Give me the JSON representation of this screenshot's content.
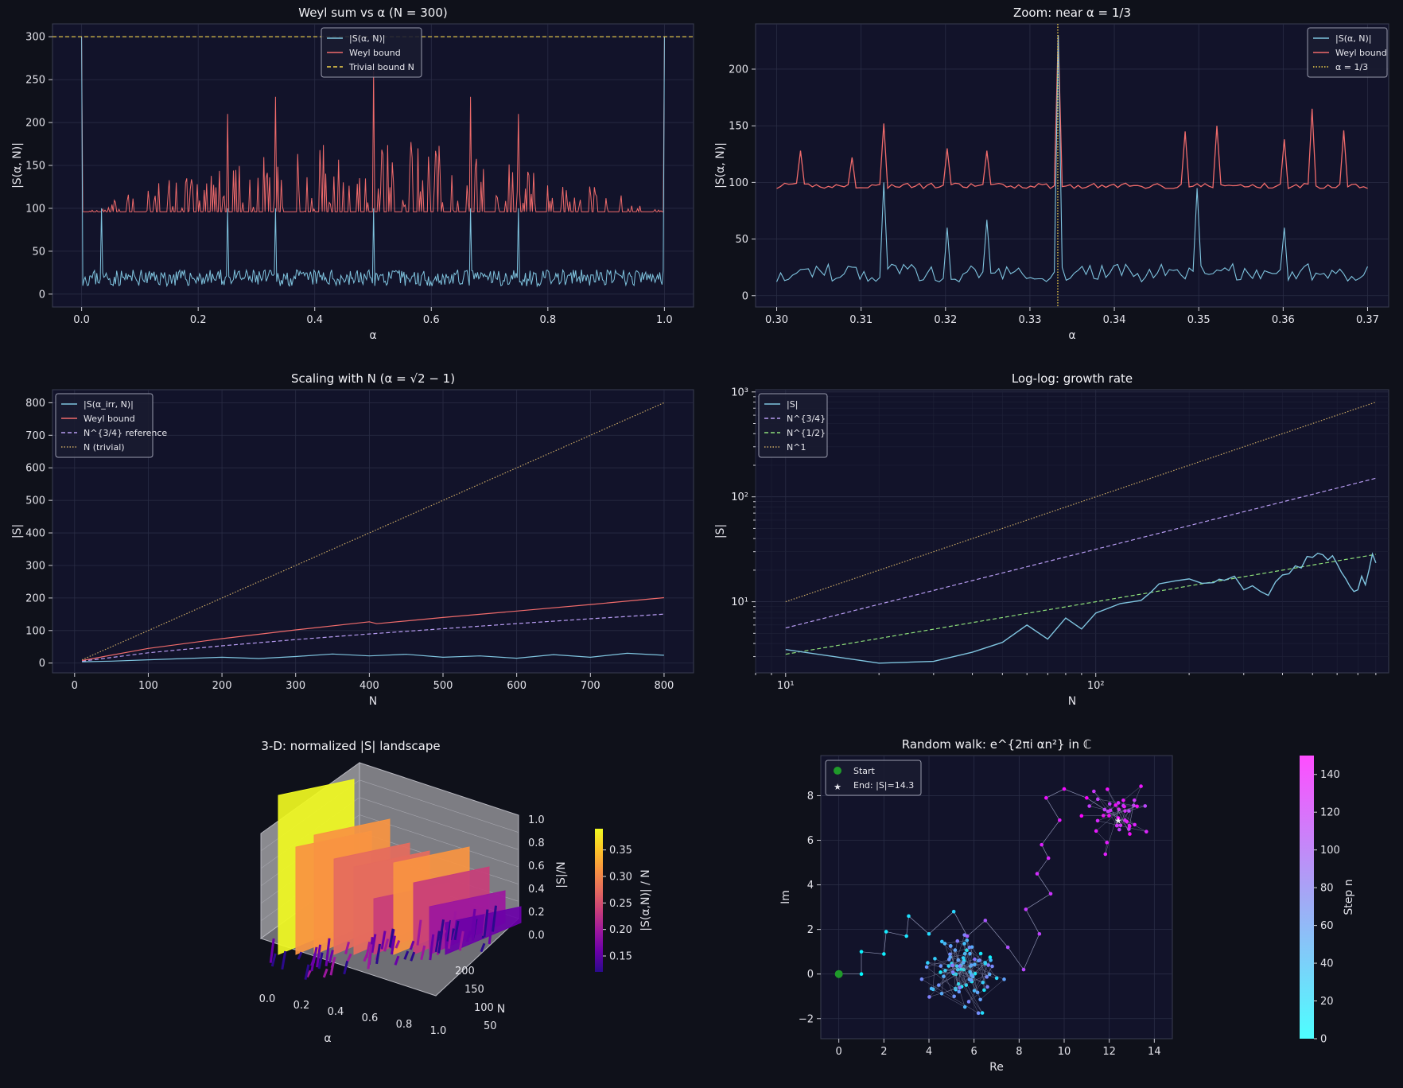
{
  "figure": {
    "background": "#0f111a",
    "panel_background": "#12132a"
  },
  "colors": {
    "s": "#7fc4df",
    "weyl": "#f06b6b",
    "trivial": "#f5d54a",
    "n34": "#b79cf2",
    "n12": "#8ee07a",
    "n1": "#c9a864"
  },
  "chart_data": [
    {
      "id": "p1",
      "type": "line",
      "title": "Weyl sum vs α  (N = 300)",
      "xlabel": "α",
      "ylabel": "|S(α, N)|",
      "xlim": [
        -0.05,
        1.05
      ],
      "ylim": [
        -15,
        315
      ],
      "xticks": [
        0.0,
        0.2,
        0.4,
        0.6,
        0.8,
        1.0
      ],
      "xticklabels": [
        "0.0",
        "0.2",
        "0.4",
        "0.6",
        "0.8",
        "1.0"
      ],
      "yticks": [
        0,
        50,
        100,
        150,
        200,
        250,
        300
      ],
      "yticklabels": [
        "0",
        "50",
        "100",
        "150",
        "200",
        "250",
        "300"
      ],
      "grid": true,
      "legend_position": "top-center",
      "series": [
        {
          "name": "|S(α, N)|",
          "color": "#7fc4df",
          "style": "solid",
          "baseline": 15,
          "noise": 12,
          "n": 500,
          "x_range": [
            0.0,
            1.0
          ],
          "spikes": [
            [
              0.0,
              300
            ],
            [
              0.0335,
              100
            ],
            [
              0.25,
              100
            ],
            [
              0.333,
              100
            ],
            [
              0.5,
              100
            ],
            [
              0.667,
              100
            ],
            [
              0.75,
              100
            ],
            [
              1.0,
              300
            ]
          ]
        },
        {
          "name": "Weyl bound",
          "color": "#f06b6b",
          "style": "solid",
          "baseline": 96,
          "noise": 0,
          "n": 500,
          "x_range": [
            0.0,
            1.0
          ],
          "envelope_peak": 180,
          "spikes": [
            [
              0.0,
              300
            ],
            [
              0.25,
              210
            ],
            [
              0.333,
              230
            ],
            [
              0.5,
              260
            ],
            [
              0.667,
              230
            ],
            [
              0.75,
              210
            ],
            [
              1.0,
              300
            ]
          ]
        },
        {
          "name": "Trivial bound N",
          "color": "#f5d54a",
          "style": "dashed",
          "constant": 300
        }
      ]
    },
    {
      "id": "p2",
      "type": "line",
      "title": "Zoom: near α = 1/3",
      "xlabel": "α",
      "ylabel": "|S(α, N)|",
      "xlim": [
        0.2975,
        0.3725
      ],
      "ylim": [
        -10,
        240
      ],
      "xticks": [
        0.3,
        0.31,
        0.32,
        0.33,
        0.34,
        0.35,
        0.36,
        0.37
      ],
      "xticklabels": [
        "0.30",
        "0.31",
        "0.32",
        "0.33",
        "0.34",
        "0.35",
        "0.36",
        "0.37"
      ],
      "yticks": [
        0,
        50,
        100,
        150,
        200
      ],
      "yticklabels": [
        "0",
        "50",
        "100",
        "150",
        "200"
      ],
      "grid": true,
      "legend_position": "top-right",
      "series": [
        {
          "name": "|S(α, N)|",
          "color": "#7fc4df",
          "style": "solid",
          "baseline": 17,
          "noise": 10,
          "n": 150,
          "x_range": [
            0.3,
            0.37
          ],
          "spikes": [
            [
              0.3125,
              100
            ],
            [
              0.32,
              60
            ],
            [
              0.325,
              67
            ],
            [
              0.3333,
              230
            ],
            [
              0.35,
              95
            ],
            [
              0.36,
              60
            ]
          ]
        },
        {
          "name": "Weyl bound",
          "color": "#f06b6b",
          "style": "solid",
          "baseline": 96,
          "noise": 3,
          "n": 150,
          "x_range": [
            0.3,
            0.37
          ],
          "spikes": [
            [
              0.303,
              128
            ],
            [
              0.309,
              122
            ],
            [
              0.3125,
              152
            ],
            [
              0.32,
              130
            ],
            [
              0.325,
              128
            ],
            [
              0.3333,
              230
            ],
            [
              0.3485,
              145
            ],
            [
              0.352,
              150
            ],
            [
              0.36,
              138
            ],
            [
              0.3635,
              165
            ],
            [
              0.367,
              146
            ]
          ]
        },
        {
          "name": "α = 1/3",
          "color": "#f5d54a",
          "style": "dotted",
          "vertical": 0.3333
        }
      ]
    },
    {
      "id": "p3",
      "type": "line",
      "title": "Scaling with N  (α = √2 − 1)",
      "xlabel": "N",
      "ylabel": "|S|",
      "xlim": [
        -30,
        840
      ],
      "ylim": [
        -30,
        840
      ],
      "xticks": [
        0,
        100,
        200,
        300,
        400,
        500,
        600,
        700,
        800
      ],
      "xticklabels": [
        "0",
        "100",
        "200",
        "300",
        "400",
        "500",
        "600",
        "700",
        "800"
      ],
      "yticks": [
        0,
        100,
        200,
        300,
        400,
        500,
        600,
        700,
        800
      ],
      "yticklabels": [
        "0",
        "100",
        "200",
        "300",
        "400",
        "500",
        "600",
        "700",
        "800"
      ],
      "grid": true,
      "legend_position": "top-left",
      "series": [
        {
          "name": "|S(α_irr, N)|",
          "color": "#7fc4df",
          "style": "solid",
          "x": [
            10,
            50,
            100,
            150,
            200,
            250,
            300,
            350,
            400,
            450,
            500,
            550,
            600,
            650,
            700,
            750,
            800
          ],
          "y": [
            4,
            6,
            10,
            14,
            18,
            14,
            20,
            28,
            22,
            27,
            18,
            22,
            15,
            26,
            18,
            30,
            24
          ]
        },
        {
          "name": "Weyl bound",
          "color": "#f06b6b",
          "style": "solid",
          "x": [
            10,
            100,
            200,
            300,
            400,
            410,
            500,
            600,
            700,
            800
          ],
          "y": [
            8,
            45,
            75,
            102,
            127,
            121,
            140,
            160,
            180,
            201
          ]
        },
        {
          "name": "N^{3/4} reference",
          "color": "#b79cf2",
          "style": "dashed",
          "x": [
            10,
            100,
            200,
            300,
            400,
            500,
            600,
            700,
            800
          ],
          "y": [
            5.6,
            31.6,
            53.2,
            72.1,
            89.4,
            105.7,
            121.2,
            136.1,
            150.4
          ]
        },
        {
          "name": "N (trivial)",
          "color": "#c9a864",
          "style": "dotted",
          "x": [
            10,
            800
          ],
          "y": [
            10,
            800
          ]
        }
      ]
    },
    {
      "id": "p4",
      "type": "line",
      "title": "Log-log: growth rate",
      "xlabel": "N",
      "ylabel": "|S|",
      "xscale": "log",
      "yscale": "log",
      "xlim": [
        8,
        880
      ],
      "ylim": [
        2.1,
        1050
      ],
      "xticks": [
        10,
        100
      ],
      "xticklabels": [
        "10¹",
        "10²"
      ],
      "yticks": [
        10,
        100,
        1000
      ],
      "yticklabels": [
        "10¹",
        "10²",
        "10³"
      ],
      "grid": true,
      "legend_position": "top-left",
      "series": [
        {
          "name": "|S|",
          "color": "#7fc4df",
          "style": "solid",
          "x": [
            10,
            20,
            30,
            40,
            50,
            60,
            70,
            80,
            90,
            100,
            120,
            140,
            150,
            160,
            180,
            200,
            220,
            240,
            250,
            260,
            280,
            300,
            320,
            340,
            360,
            380,
            400,
            420,
            440,
            460,
            480,
            500,
            520,
            540,
            560,
            580,
            600,
            620,
            640,
            660,
            680,
            700,
            720,
            740,
            760,
            780,
            800
          ],
          "y": [
            3.5,
            2.6,
            2.7,
            3.3,
            4.1,
            6.0,
            4.4,
            7.0,
            5.5,
            7.8,
            9.6,
            10.3,
            12.2,
            14.8,
            15.8,
            16.5,
            15.0,
            15.2,
            16.4,
            16.0,
            17.5,
            13.0,
            14.2,
            12.5,
            11.5,
            15.5,
            18.0,
            18.5,
            22.0,
            21.0,
            27.0,
            26.5,
            29.0,
            28.0,
            25.0,
            27.5,
            23.0,
            19.0,
            16.5,
            14.0,
            12.5,
            13.0,
            17.5,
            14.5,
            20.0,
            28.5,
            23.5
          ]
        },
        {
          "name": "N^{3/4}",
          "color": "#b79cf2",
          "style": "dashed",
          "power": 0.75,
          "coef": 1.0
        },
        {
          "name": "N^{1/2}",
          "color": "#8ee07a",
          "style": "dashed",
          "power": 0.5,
          "coef": 1.0
        },
        {
          "name": "N^1",
          "color": "#c9a864",
          "style": "dotted",
          "power": 1.0,
          "coef": 1.0
        }
      ]
    },
    {
      "id": "p5",
      "type": "area",
      "title": "3-D: normalized |S| landscape",
      "xlabel": "α",
      "ylabel": "N",
      "zlabel": "|S|/N",
      "xticklabels": [
        "0.0",
        "0.2",
        "0.4",
        "0.6",
        "0.8",
        "1.0"
      ],
      "yticklabels": [
        "50",
        "100",
        "150",
        "200"
      ],
      "zticklabels": [
        "0.0",
        "0.2",
        "0.4",
        "0.6",
        "0.8",
        "1.0"
      ],
      "colorbar": {
        "label": "|S(α,N)| / N",
        "ticks": [
          "0.15",
          "0.20",
          "0.25",
          "0.30",
          "0.35"
        ],
        "range": [
          0.12,
          0.39
        ],
        "colormap": "plasma"
      }
    },
    {
      "id": "p6",
      "type": "scatter",
      "title": "Random walk: e^{2πi αn²} in ℂ",
      "xlabel": "Re",
      "ylabel": "Im",
      "xlim": [
        -0.8,
        14.8
      ],
      "ylim": [
        -2.9,
        9.8
      ],
      "xticks": [
        0,
        2,
        4,
        6,
        8,
        10,
        12,
        14
      ],
      "xticklabels": [
        "0",
        "2",
        "4",
        "6",
        "8",
        "10",
        "12",
        "14"
      ],
      "yticks": [
        -2,
        0,
        2,
        4,
        6,
        8
      ],
      "yticklabels": [
        "−2",
        "0",
        "2",
        "4",
        "6",
        "8"
      ],
      "grid": true,
      "legend_position": "top-left",
      "legend": [
        {
          "name": "Start",
          "marker": "circle",
          "color": "#1f9a2a"
        },
        {
          "name": "End: |S|=14.3",
          "marker": "star",
          "color": "#ff2020"
        }
      ],
      "start": [
        0,
        0
      ],
      "end": [
        12.4,
        7.0
      ],
      "clusters": [
        {
          "center": [
            5.5,
            -0.1
          ],
          "count": 90,
          "step_from": 0
        },
        {
          "center": [
            12.4,
            7.0
          ],
          "count": 40,
          "step_from": 110
        }
      ],
      "path_points": [
        [
          0,
          0
        ],
        [
          1,
          0
        ],
        [
          1,
          1
        ],
        [
          2,
          0.9
        ],
        [
          2.1,
          1.9
        ],
        [
          3,
          1.7
        ],
        [
          3.1,
          2.6
        ],
        [
          4,
          1.8
        ],
        [
          5.1,
          2.8
        ],
        [
          5.7,
          1.7
        ],
        [
          6.5,
          2.4
        ],
        [
          7.5,
          1.2
        ],
        [
          8.2,
          0.2
        ],
        [
          8.9,
          1.8
        ],
        [
          8.3,
          2.9
        ],
        [
          9.4,
          3.6
        ],
        [
          8.8,
          4.5
        ],
        [
          9.3,
          5.2
        ],
        [
          9.0,
          5.8
        ],
        [
          9.8,
          6.9
        ],
        [
          9.2,
          7.9
        ],
        [
          10.0,
          8.3
        ],
        [
          11.0,
          7.9
        ],
        [
          12.4,
          7.0
        ]
      ],
      "colorbar": {
        "label": "Step n",
        "ticks": [
          "0",
          "20",
          "40",
          "60",
          "80",
          "100",
          "120",
          "140"
        ],
        "range": [
          0,
          150
        ],
        "colormap": "cool"
      }
    }
  ]
}
